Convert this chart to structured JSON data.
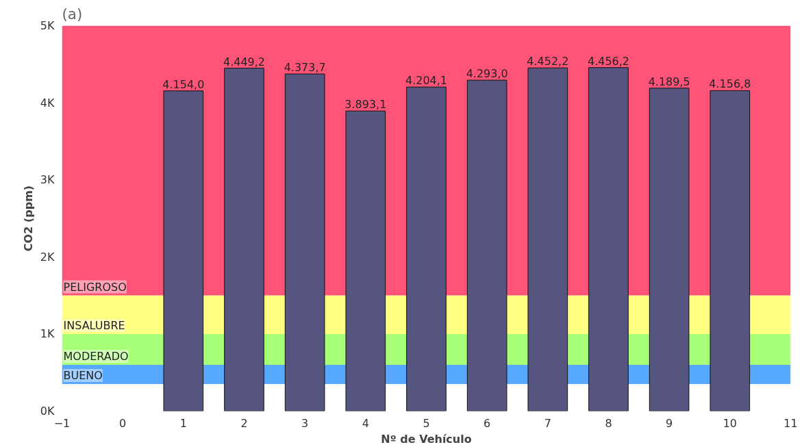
{
  "chart_data": {
    "type": "bar",
    "xlabel": "Nº de Vehículo",
    "ylabel": "CO2 (ppm)",
    "annotations": [
      "(a)"
    ],
    "x": [
      1,
      2,
      3,
      4,
      5,
      6,
      7,
      8,
      9,
      10
    ],
    "values": [
      4154.0,
      4449.2,
      4373.7,
      3893.1,
      4204.1,
      4293.0,
      4452.2,
      4456.2,
      4189.5,
      4156.8
    ],
    "value_labels": [
      "4.154,0",
      "4.449,2",
      "4.373,7",
      "3.893,1",
      "4.204,1",
      "4.293,0",
      "4.452,2",
      "4.456,2",
      "4.189,5",
      "4.156,8"
    ],
    "color": "#56557f",
    "xlim": [
      -1,
      11
    ],
    "xticks": [
      -1,
      0,
      1,
      2,
      3,
      4,
      5,
      6,
      7,
      8,
      9,
      10,
      11
    ],
    "ylim": [
      0,
      5000
    ],
    "yticks": [
      {
        "value": 0,
        "label": "0K"
      },
      {
        "value": 1000,
        "label": "1K"
      },
      {
        "value": 2000,
        "label": "2K"
      },
      {
        "value": 3000,
        "label": "3K"
      },
      {
        "value": 4000,
        "label": "4K"
      },
      {
        "value": 5000,
        "label": "5K"
      }
    ],
    "bands": [
      {
        "axis": "y",
        "from": 350,
        "to": 600,
        "label": "BUENO",
        "color": "#57a8ff"
      },
      {
        "axis": "y",
        "from": 600,
        "to": 1000,
        "label": "MODERADO",
        "color": "#a8ff78"
      },
      {
        "axis": "y",
        "from": 1000,
        "to": 1500,
        "label": "INSALUBRE",
        "color": "#ffff80"
      },
      {
        "axis": "y",
        "from": 1500,
        "to": 5000,
        "label": "PELIGROSO",
        "color": "#ff5478"
      }
    ],
    "grid": false
  }
}
